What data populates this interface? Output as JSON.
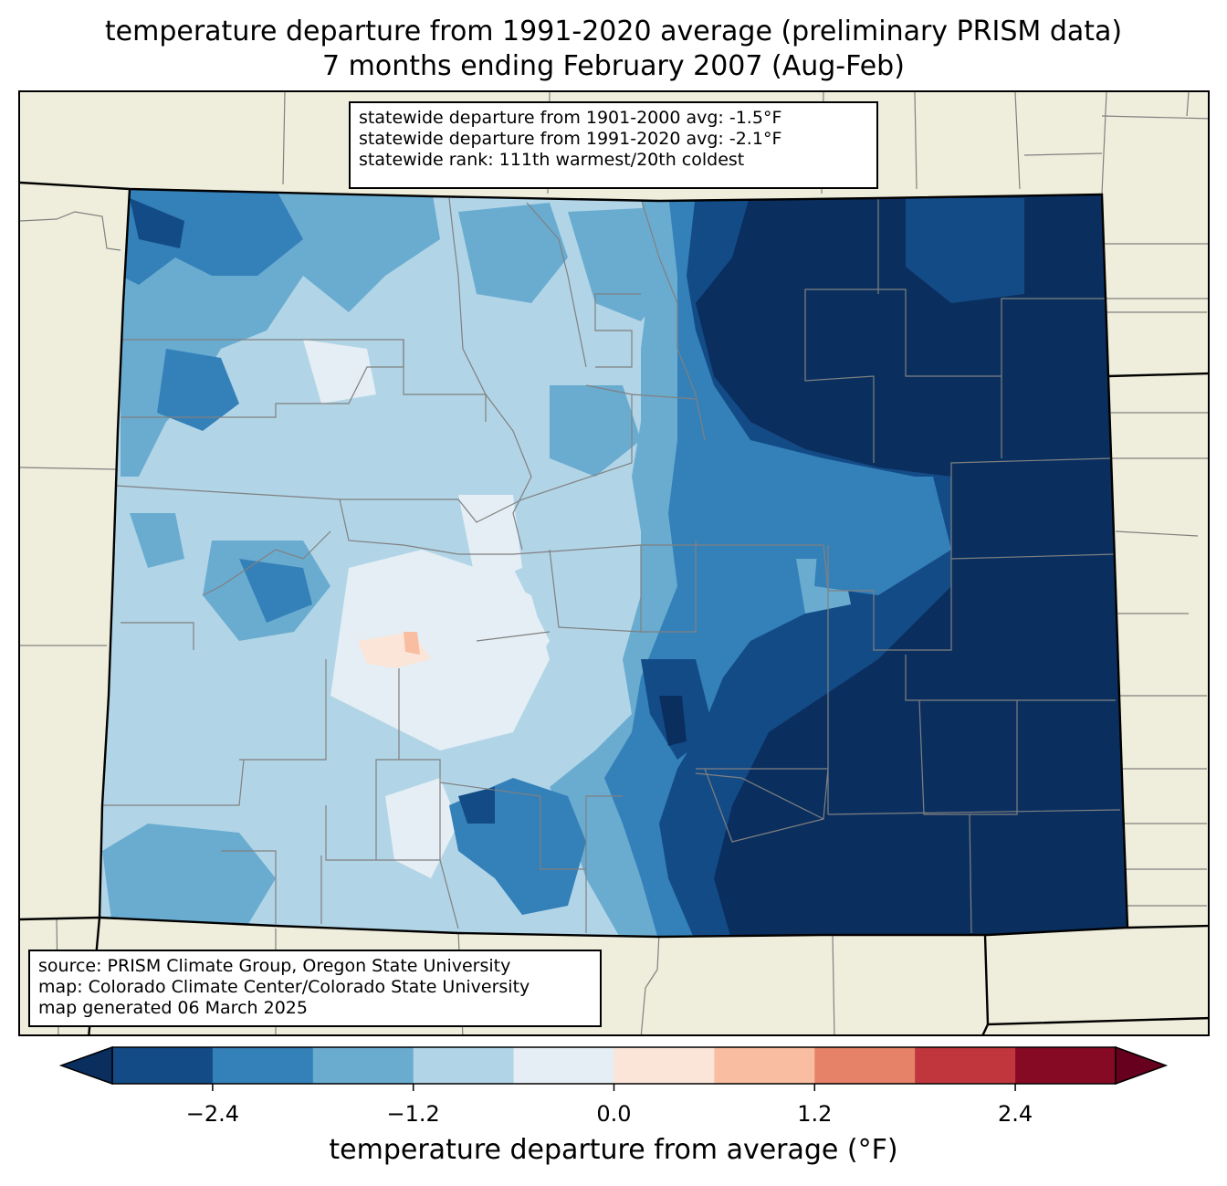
{
  "title": {
    "line1": "temperature departure from 1991-2020 average (preliminary PRISM data)",
    "line2": "7 months ending February 2007 (Aug-Feb)"
  },
  "stats": {
    "line1": "statewide departure from 1901-2000 avg: -1.5°F",
    "line2": "statewide departure from 1991-2020 avg: -2.1°F",
    "line3": "statewide rank: 111th warmest/20th coldest"
  },
  "source": {
    "line1": "source: PRISM Climate Group, Oregon State University",
    "line2": "map: Colorado Climate Center/Colorado State University",
    "line3": "map generated 06 March 2025"
  },
  "colorbar": {
    "label": "temperature departure from average (°F)",
    "ticks": [
      "−2.4",
      "−1.2",
      "0.0",
      "1.2",
      "2.4"
    ],
    "tick_values": [
      -2.4,
      -1.2,
      0.0,
      1.2,
      2.4
    ],
    "range": [
      -3.0,
      3.0
    ],
    "step": 0.6,
    "under_color": "#0a2f5f",
    "over_color": "#67001f",
    "colors": [
      "#134b87",
      "#3480b9",
      "#6aacd0",
      "#b1d5e7",
      "#e4eef4",
      "#fbe5d8",
      "#f9bda1",
      "#e58267",
      "#c0363c",
      "#870a24"
    ]
  },
  "map": {
    "background_color": "#efeedc",
    "border_color": "#000000",
    "county_line_color": "#808080"
  }
}
